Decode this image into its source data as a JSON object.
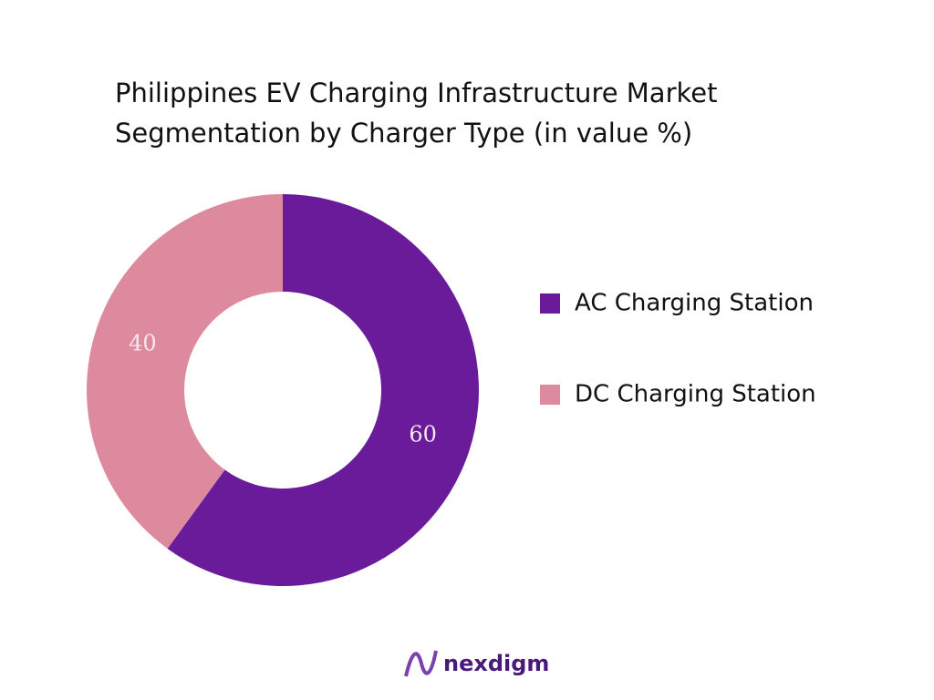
{
  "chart_data": {
    "type": "donut",
    "title": "Philippines EV Charging Infrastructure Market Segmentation by Charger Type (in value %)",
    "categories": [
      "AC Charging Station",
      "DC Charging Station"
    ],
    "values": [
      60,
      40
    ],
    "colors": [
      "#6a1b9a",
      "#de8a9e"
    ],
    "legend": "right"
  },
  "logo": "nexdigm"
}
